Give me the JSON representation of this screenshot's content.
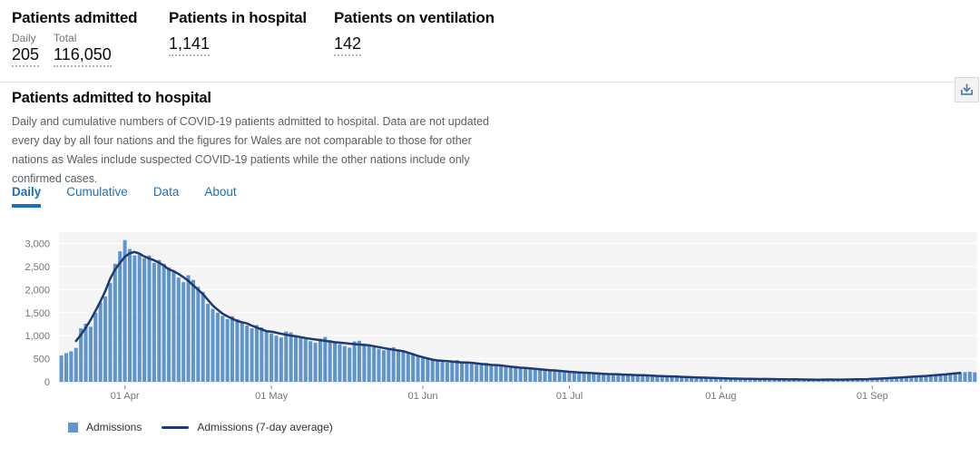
{
  "header": {
    "stats": [
      {
        "title": "Patients admitted",
        "items": [
          {
            "label": "Daily",
            "value": "205"
          },
          {
            "label": "Total",
            "value": "116,050"
          }
        ]
      },
      {
        "title": "Patients in hospital",
        "value": "1,141"
      },
      {
        "title": "Patients on ventilation",
        "value": "142"
      }
    ]
  },
  "card": {
    "title": "Patients admitted to hospital",
    "description": "Daily and cumulative numbers of COVID-19 patients admitted to hospital. Data are not updated every day by all four nations and the figures for Wales are not comparable to those for other nations as Wales include suspected COVID-19 patients while the other nations include only confirmed cases.",
    "download_icon": "download-icon",
    "tabs": [
      {
        "label": "Daily",
        "active": true
      },
      {
        "label": "Cumulative",
        "active": false
      },
      {
        "label": "Data",
        "active": false
      },
      {
        "label": "About",
        "active": false
      }
    ]
  },
  "chart_data": {
    "type": "bar",
    "title": "Patients admitted to hospital (Daily)",
    "xlabel": "",
    "ylabel": "",
    "ylim": [
      0,
      3250
    ],
    "grid": true,
    "legend_position": "bottom",
    "y_ticks": [
      "0",
      "500",
      "1,000",
      "1,500",
      "2,000",
      "2,500",
      "3,000"
    ],
    "x_ticks": [
      {
        "label": "01 Apr",
        "index": 13
      },
      {
        "label": "01 May",
        "index": 43
      },
      {
        "label": "01 Jun",
        "index": 74
      },
      {
        "label": "01 Jul",
        "index": 104
      },
      {
        "label": "01 Aug",
        "index": 135
      },
      {
        "label": "01 Sep",
        "index": 166
      }
    ],
    "series": [
      {
        "name": "Admissions",
        "type": "bar",
        "color": "#6095cc",
        "values": [
          570,
          620,
          660,
          735,
          1160,
          1260,
          1194,
          1500,
          1720,
          1850,
          2140,
          2560,
          2830,
          3075,
          2880,
          2740,
          2760,
          2680,
          2740,
          2580,
          2640,
          2560,
          2480,
          2380,
          2260,
          2160,
          2310,
          2210,
          2060,
          1950,
          1690,
          1580,
          1500,
          1430,
          1360,
          1420,
          1360,
          1280,
          1220,
          1160,
          1230,
          1180,
          1100,
          1050,
          1000,
          960,
          1090,
          1070,
          1010,
          965,
          920,
          880,
          845,
          935,
          970,
          905,
          860,
          815,
          775,
          740,
          875,
          890,
          830,
          790,
          750,
          715,
          685,
          735,
          750,
          695,
          660,
          625,
          600,
          575,
          520,
          495,
          470,
          450,
          430,
          415,
          455,
          470,
          435,
          405,
          390,
          370,
          395,
          410,
          380,
          355,
          335,
          320,
          335,
          345,
          310,
          290,
          275,
          260,
          285,
          275,
          255,
          240,
          225,
          215,
          230,
          215,
          200,
          190,
          180,
          170,
          195,
          185,
          170,
          160,
          150,
          140,
          155,
          165,
          150,
          140,
          130,
          120,
          130,
          135,
          120,
          110,
          105,
          100,
          110,
          105,
          95,
          90,
          85,
          80,
          75,
          85,
          78,
          70,
          64,
          58,
          54,
          68,
          74,
          64,
          58,
          52,
          48,
          58,
          64,
          55,
          50,
          46,
          42,
          50,
          56,
          48,
          45,
          42,
          40,
          52,
          56,
          50,
          48,
          46,
          52,
          58,
          62,
          66,
          72,
          80,
          76,
          86,
          96,
          106,
          100,
          112,
          122,
          132,
          126,
          142,
          152,
          168,
          162,
          178,
          192,
          210,
          218,
          205
        ]
      },
      {
        "name": "Admissions (7-day average)",
        "type": "line",
        "color": "#1e3a6e",
        "computed": "7-day centered moving average of the Admissions series"
      }
    ]
  },
  "colors": {
    "accent_blue": "#1d70b8",
    "bar_blue": "#6095cc",
    "line_navy": "#1e3a6e",
    "muted_text": "#6f777b",
    "plot_background": "#f5f5f6"
  }
}
